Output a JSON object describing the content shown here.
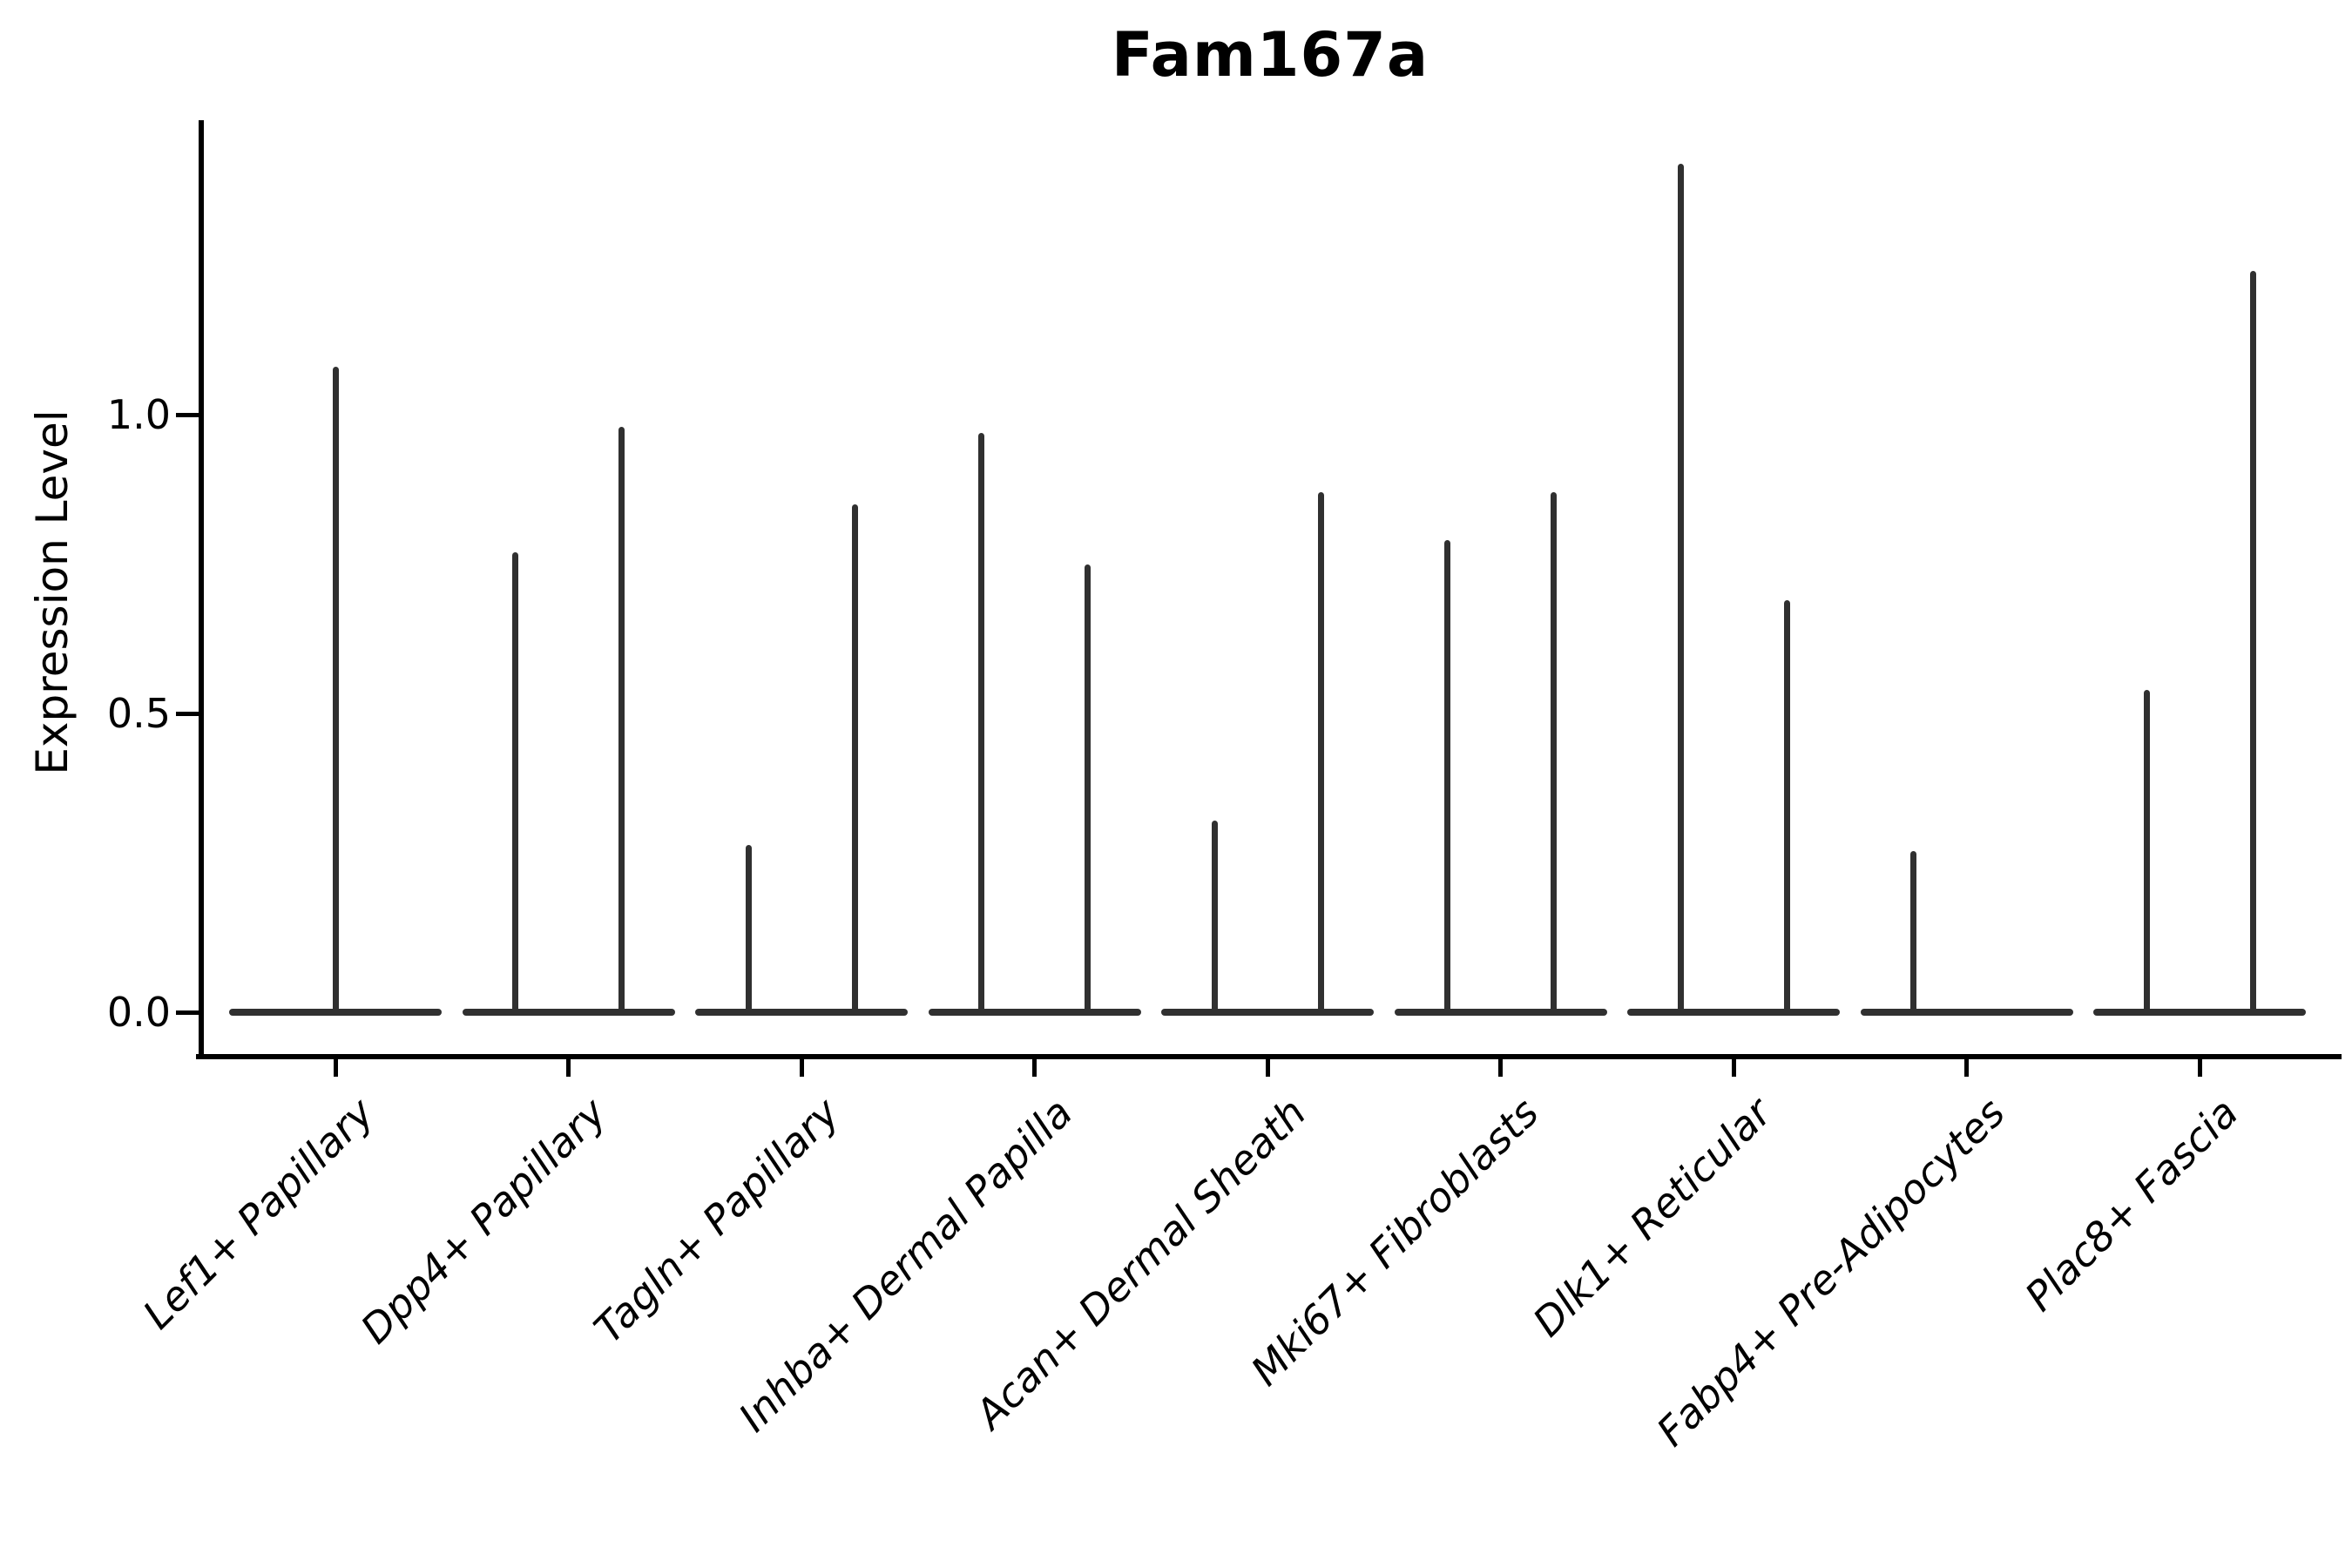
{
  "chart_data": {
    "type": "violin",
    "title": "Fam167a",
    "xlabel": "",
    "ylabel": "Expression Level",
    "yticks": [
      0.0,
      0.5,
      1.0
    ],
    "ylim": [
      -0.07,
      1.49
    ],
    "grid": false,
    "legend": "none",
    "x_tick_rotation": 45,
    "x_tick_style": "italic",
    "violin_shape": "flat body at 0 with thin vertical tail up to max",
    "colors": {
      "violin": "#303030",
      "axis": "#000000",
      "text": "#000000",
      "background": "#ffffff"
    },
    "categories": [
      "Lef1+ Papillary",
      "Dpp4+ Papillary",
      "Tagln+ Papillary",
      "Inhba+ Dermal Papilla",
      "Acan+ Dermal Sheath",
      "Mki67+ Fibroblasts",
      "Dlk1+ Reticular",
      "Fabp4+ Pre-Adipocytes",
      "Plac8+ Fascia"
    ],
    "violins": [
      {
        "category": "Lef1+ Papillary",
        "spikes": [
          {
            "offset": "center",
            "max": 1.08
          }
        ]
      },
      {
        "category": "Dpp4+ Papillary",
        "spikes": [
          {
            "offset": "left",
            "max": 0.77
          },
          {
            "offset": "right",
            "max": 0.98
          }
        ]
      },
      {
        "category": "Tagln+ Papillary",
        "spikes": [
          {
            "offset": "left",
            "max": 0.28
          },
          {
            "offset": "right",
            "max": 0.85
          }
        ]
      },
      {
        "category": "Inhba+ Dermal Papilla",
        "spikes": [
          {
            "offset": "left",
            "max": 0.97
          },
          {
            "offset": "right",
            "max": 0.75
          }
        ]
      },
      {
        "category": "Acan+ Dermal Sheath",
        "spikes": [
          {
            "offset": "left",
            "max": 0.32
          },
          {
            "offset": "right",
            "max": 0.87
          }
        ]
      },
      {
        "category": "Mki67+ Fibroblasts",
        "spikes": [
          {
            "offset": "left",
            "max": 0.79
          },
          {
            "offset": "right",
            "max": 0.87
          }
        ]
      },
      {
        "category": "Dlk1+ Reticular",
        "spikes": [
          {
            "offset": "left",
            "max": 1.42
          },
          {
            "offset": "right",
            "max": 0.69
          }
        ]
      },
      {
        "category": "Fabp4+ Pre-Adipocytes",
        "spikes": [
          {
            "offset": "left",
            "max": 0.27
          }
        ]
      },
      {
        "category": "Plac8+ Fascia",
        "spikes": [
          {
            "offset": "left",
            "max": 0.54
          },
          {
            "offset": "right",
            "max": 1.24
          }
        ]
      }
    ]
  }
}
